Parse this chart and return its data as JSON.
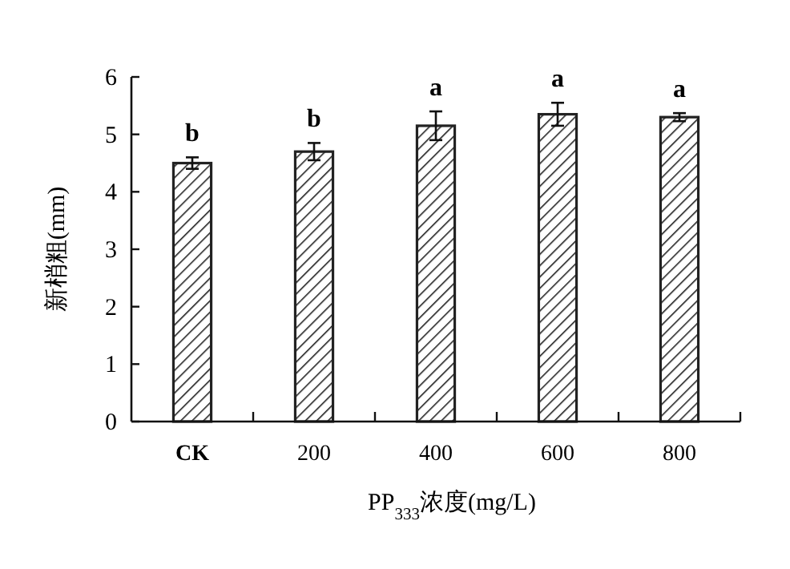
{
  "chart_data": {
    "type": "bar",
    "categories": [
      "CK",
      "200",
      "400",
      "600",
      "800"
    ],
    "values": [
      4.5,
      4.7,
      5.15,
      5.35,
      5.3
    ],
    "errors": [
      0.1,
      0.15,
      0.25,
      0.2,
      0.07
    ],
    "color": "#222222",
    "ylim": [
      0,
      6
    ],
    "yticks": [
      0,
      1,
      2,
      3,
      4,
      5,
      6
    ],
    "ylabel": "新梢粗(mm)",
    "xlabel": "PP$_{333}$浓度(mg/L)",
    "grid": false,
    "annotations": [
      {
        "text": "b",
        "x": "CK",
        "y": 4.6
      },
      {
        "text": "b",
        "x": "200",
        "y": 4.85
      },
      {
        "text": "a",
        "x": "400",
        "y": 5.4
      },
      {
        "text": "a",
        "x": "600",
        "y": 5.55
      },
      {
        "text": "a",
        "x": "800",
        "y": 5.37
      }
    ]
  }
}
